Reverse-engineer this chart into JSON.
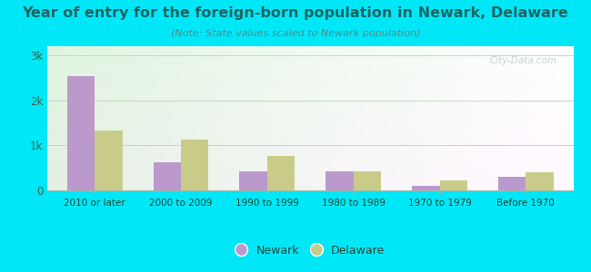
{
  "title": "Year of entry for the foreign-born population in Newark, Delaware",
  "subtitle": "(Note: State values scaled to Newark population)",
  "categories": [
    "2010 or later",
    "2000 to 2009",
    "1990 to 1999",
    "1980 to 1989",
    "1970 to 1979",
    "Before 1970"
  ],
  "newark_values": [
    2530,
    620,
    430,
    430,
    100,
    310
  ],
  "delaware_values": [
    1330,
    1130,
    760,
    430,
    220,
    400
  ],
  "newark_color": "#bb99cc",
  "delaware_color": "#c8cc88",
  "background_outer": "#00e8f8",
  "title_color": "#1a6666",
  "subtitle_color": "#558888",
  "tick_color": "#336644",
  "xticklabel_color": "#224433",
  "grid_color": "#bbddbb",
  "title_fontsize": 11.5,
  "subtitle_fontsize": 8,
  "ytick_labels": [
    "0",
    "1k",
    "2k",
    "3k"
  ],
  "ytick_values": [
    0,
    1000,
    2000,
    3000
  ],
  "ylim": [
    0,
    3200
  ],
  "watermark": "City-Data.com",
  "legend_newark": "Newark",
  "legend_delaware": "Delaware",
  "bar_width": 0.32
}
